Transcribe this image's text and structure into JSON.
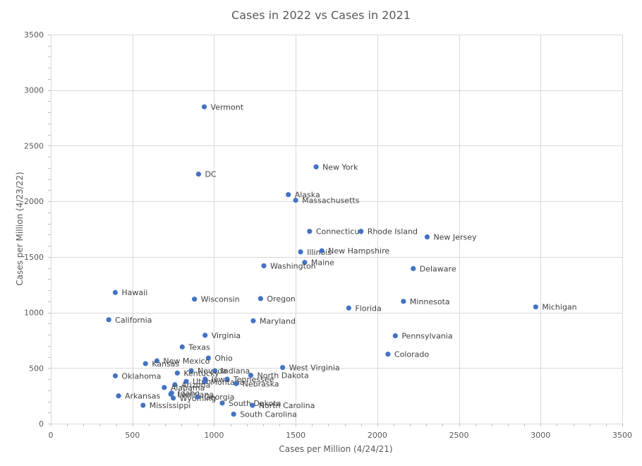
{
  "chart_data": {
    "type": "scatter",
    "title": "Cases in 2022 vs Cases in 2021",
    "xlabel": "Cases per Million (4/24/21)",
    "ylabel": "Cases per Million (4/23/22)",
    "xlim": [
      0,
      3500
    ],
    "ylim": [
      0,
      3500
    ],
    "xticks": [
      0,
      500,
      1000,
      1500,
      2000,
      2500,
      3000,
      3500
    ],
    "yticks": [
      0,
      500,
      1000,
      1500,
      2000,
      2500,
      3000,
      3500
    ],
    "grid": true,
    "legend": "none",
    "color": "#4472c4",
    "points": [
      {
        "label": "Vermont",
        "x": 940,
        "y": 2850
      },
      {
        "label": "DC",
        "x": 905,
        "y": 2245
      },
      {
        "label": "New York",
        "x": 1625,
        "y": 2310
      },
      {
        "label": "Alaska",
        "x": 1455,
        "y": 2060
      },
      {
        "label": "Massachusetts",
        "x": 1500,
        "y": 2010
      },
      {
        "label": "Connecticut",
        "x": 1585,
        "y": 1730
      },
      {
        "label": "Rhode Island",
        "x": 1900,
        "y": 1730
      },
      {
        "label": "New Jersey",
        "x": 2305,
        "y": 1680
      },
      {
        "label": "Illinois",
        "x": 1530,
        "y": 1545
      },
      {
        "label": "New Hampshire",
        "x": 1660,
        "y": 1555
      },
      {
        "label": "Maine",
        "x": 1555,
        "y": 1450
      },
      {
        "label": "Washington",
        "x": 1305,
        "y": 1420
      },
      {
        "label": "Delaware",
        "x": 2220,
        "y": 1395
      },
      {
        "label": "Hawaii",
        "x": 395,
        "y": 1180
      },
      {
        "label": "Wisconsin",
        "x": 880,
        "y": 1120
      },
      {
        "label": "Oregon",
        "x": 1285,
        "y": 1125
      },
      {
        "label": "Minnesota",
        "x": 2160,
        "y": 1100
      },
      {
        "label": "Michigan",
        "x": 2970,
        "y": 1050
      },
      {
        "label": "Florida",
        "x": 1825,
        "y": 1040
      },
      {
        "label": "California",
        "x": 355,
        "y": 935
      },
      {
        "label": "Maryland",
        "x": 1240,
        "y": 925
      },
      {
        "label": "Virginia",
        "x": 945,
        "y": 795
      },
      {
        "label": "Pennsylvania",
        "x": 2110,
        "y": 790
      },
      {
        "label": "Texas",
        "x": 805,
        "y": 690
      },
      {
        "label": "Colorado",
        "x": 2065,
        "y": 625
      },
      {
        "label": "Ohio",
        "x": 965,
        "y": 590
      },
      {
        "label": "New Mexico",
        "x": 650,
        "y": 565
      },
      {
        "label": "Kansas",
        "x": 580,
        "y": 540
      },
      {
        "label": "West Virginia",
        "x": 1420,
        "y": 505
      },
      {
        "label": "Nevada",
        "x": 860,
        "y": 475
      },
      {
        "label": "Indiana",
        "x": 1005,
        "y": 475
      },
      {
        "label": "Kentucky",
        "x": 775,
        "y": 455
      },
      {
        "label": "North Dakota",
        "x": 1225,
        "y": 435
      },
      {
        "label": "Oklahoma",
        "x": 395,
        "y": 430
      },
      {
        "label": "Iowa",
        "x": 945,
        "y": 400
      },
      {
        "label": "Tennessee",
        "x": 1080,
        "y": 400
      },
      {
        "label": "Utah",
        "x": 830,
        "y": 380
      },
      {
        "label": "Montana",
        "x": 940,
        "y": 375
      },
      {
        "label": "Nebraska",
        "x": 1135,
        "y": 360
      },
      {
        "label": "Arizona",
        "x": 760,
        "y": 350
      },
      {
        "label": "Alabama",
        "x": 695,
        "y": 325
      },
      {
        "label": "Idaho",
        "x": 740,
        "y": 275
      },
      {
        "label": "Louisiana",
        "x": 735,
        "y": 265
      },
      {
        "label": "Arkansas",
        "x": 415,
        "y": 250
      },
      {
        "label": "Wyoming",
        "x": 750,
        "y": 230
      },
      {
        "label": "Georgia",
        "x": 900,
        "y": 240
      },
      {
        "label": "South Dakota",
        "x": 1050,
        "y": 185
      },
      {
        "label": "North Carolina",
        "x": 1235,
        "y": 165
      },
      {
        "label": "Mississippi",
        "x": 565,
        "y": 165
      },
      {
        "label": "South Carolina",
        "x": 1120,
        "y": 85
      }
    ]
  }
}
